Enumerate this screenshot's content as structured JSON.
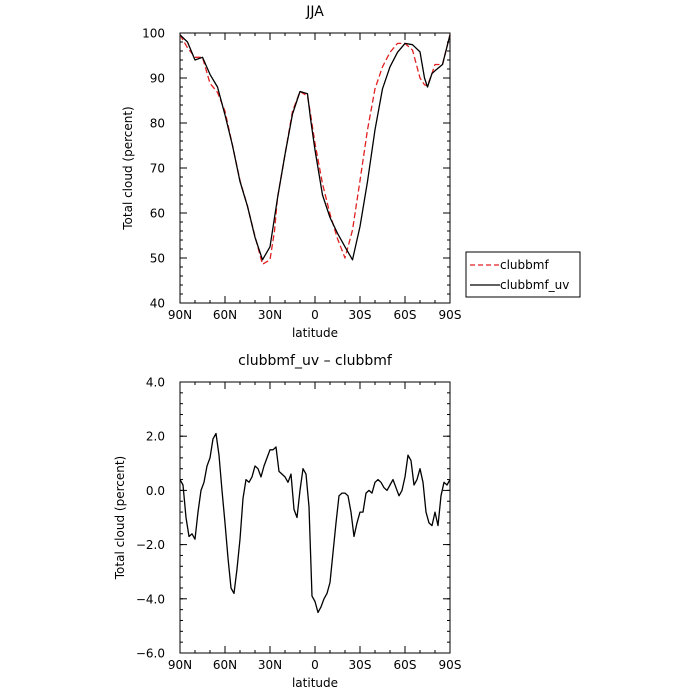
{
  "chart_data": [
    {
      "type": "line",
      "title": "JJA",
      "xlabel": "latitude",
      "ylabel": "Total cloud (percent)",
      "xlim": [
        90,
        -90
      ],
      "ylim": [
        40,
        100
      ],
      "x_ticks": [
        90,
        60,
        30,
        0,
        -30,
        -60,
        -90
      ],
      "x_tick_labels": [
        "90N",
        "60N",
        "30N",
        "0",
        "30S",
        "60S",
        "90S"
      ],
      "y_ticks": [
        40,
        50,
        60,
        70,
        80,
        90,
        100
      ],
      "y_tick_labels": [
        "40",
        "50",
        "60",
        "70",
        "80",
        "90",
        "100"
      ],
      "legend_position": "right-bottom-outside",
      "series": [
        {
          "name": "clubbmf",
          "color": "#e02020",
          "dash": "dashed",
          "x": [
            90,
            85,
            80,
            75,
            70,
            65,
            60,
            55,
            50,
            45,
            40,
            35,
            30,
            27,
            25,
            20,
            15,
            10,
            5,
            3,
            0,
            -5,
            -10,
            -15,
            -20,
            -25,
            -30,
            -35,
            -40,
            -45,
            -50,
            -55,
            -60,
            -65,
            -70,
            -73,
            -75,
            -78,
            -80,
            -85,
            -90
          ],
          "y": [
            99.6,
            96.7,
            94.6,
            94.6,
            88.8,
            86.8,
            82.6,
            75.0,
            67.2,
            61.5,
            54.8,
            48.6,
            49.6,
            56.0,
            63.4,
            73.0,
            82.6,
            87.0,
            86.0,
            82.0,
            75.5,
            66.5,
            59.8,
            54.3,
            50.0,
            56.2,
            67.2,
            78.5,
            87.6,
            92.5,
            95.7,
            97.7,
            97.7,
            96.2,
            90.0,
            88.5,
            88.3,
            91.0,
            93.0,
            93.0,
            99.6
          ]
        },
        {
          "name": "clubbmf_uv",
          "color": "#000000",
          "dash": "solid",
          "x": [
            90,
            85,
            80,
            75,
            70,
            65,
            60,
            55,
            50,
            45,
            40,
            35,
            30,
            25,
            20,
            15,
            10,
            5,
            3,
            0,
            -5,
            -10,
            -15,
            -20,
            -25,
            -30,
            -35,
            -40,
            -45,
            -50,
            -55,
            -60,
            -65,
            -70,
            -73,
            -75,
            -78,
            -80,
            -85,
            -90
          ],
          "y": [
            99.6,
            98.0,
            94.0,
            94.6,
            90.8,
            88.0,
            81.8,
            75.0,
            67.0,
            61.5,
            54.6,
            49.6,
            52.5,
            63.3,
            73.0,
            82.0,
            87.0,
            86.5,
            81.0,
            74.0,
            64.0,
            59.0,
            55.5,
            52.5,
            49.6,
            57.0,
            67.0,
            78.5,
            87.6,
            92.5,
            95.7,
            97.7,
            97.4,
            95.8,
            90.0,
            88.0,
            91.0,
            91.6,
            93.0,
            99.6
          ]
        }
      ]
    },
    {
      "type": "line",
      "title": "clubbmf_uv – clubbmf",
      "xlabel": "latitude",
      "ylabel": "Total cloud (percent)",
      "xlim": [
        90,
        -90
      ],
      "ylim": [
        -6,
        4
      ],
      "x_ticks": [
        90,
        60,
        30,
        0,
        -30,
        -60,
        -90
      ],
      "x_tick_labels": [
        "90N",
        "60N",
        "30N",
        "0",
        "30S",
        "60S",
        "90S"
      ],
      "y_ticks": [
        -6,
        -4,
        -2,
        0,
        2,
        4
      ],
      "y_tick_labels": [
        "−6.0",
        "−4.0",
        "−2.0",
        "0.0",
        "2.0",
        "4.0"
      ],
      "series": [
        {
          "color": "#000000",
          "dash": "solid",
          "x": [
            90,
            88,
            86,
            84,
            82,
            80,
            78,
            76,
            74,
            72,
            70,
            68,
            66,
            64,
            62,
            60,
            58,
            56,
            54,
            52,
            50,
            48,
            46,
            44,
            42,
            40,
            38,
            36,
            34,
            32,
            30,
            28,
            26,
            24,
            22,
            20,
            18,
            16,
            14,
            12,
            10,
            8,
            6,
            4,
            2,
            0,
            -2,
            -4,
            -6,
            -8,
            -10,
            -12,
            -14,
            -16,
            -18,
            -20,
            -22,
            -24,
            -26,
            -28,
            -30,
            -32,
            -34,
            -36,
            -38,
            -40,
            -42,
            -44,
            -46,
            -48,
            -50,
            -52,
            -54,
            -56,
            -58,
            -60,
            -62,
            -64,
            -66,
            -68,
            -70,
            -72,
            -74,
            -76,
            -78,
            -80,
            -82,
            -84,
            -86,
            -88,
            -90
          ],
          "y": [
            0.4,
            0.2,
            -1.0,
            -1.7,
            -1.6,
            -1.8,
            -0.8,
            0.0,
            0.3,
            0.9,
            1.2,
            1.9,
            2.1,
            1.3,
            0.0,
            -1.2,
            -2.5,
            -3.6,
            -3.8,
            -2.9,
            -1.8,
            -0.3,
            0.4,
            0.3,
            0.5,
            0.9,
            0.8,
            0.5,
            0.9,
            1.2,
            1.5,
            1.5,
            1.6,
            0.7,
            0.6,
            0.5,
            0.3,
            0.6,
            -0.7,
            -1.0,
            0.0,
            0.8,
            0.6,
            -0.6,
            -3.9,
            -4.1,
            -4.5,
            -4.3,
            -4.0,
            -3.8,
            -3.4,
            -2.3,
            -1.2,
            -0.2,
            -0.1,
            -0.1,
            -0.2,
            -0.8,
            -1.7,
            -1.2,
            -0.8,
            -0.8,
            -0.1,
            0.0,
            -0.1,
            0.3,
            0.4,
            0.3,
            0.1,
            0.0,
            0.2,
            0.4,
            0.1,
            -0.2,
            0.0,
            0.5,
            1.3,
            1.1,
            0.2,
            0.4,
            0.8,
            0.3,
            -0.8,
            -1.2,
            -1.3,
            -0.8,
            -1.3,
            -0.2,
            0.3,
            0.2,
            0.4
          ]
        }
      ]
    }
  ]
}
